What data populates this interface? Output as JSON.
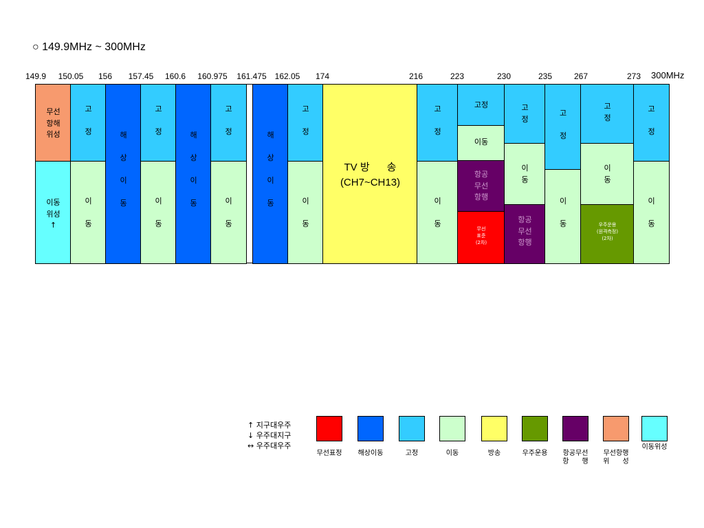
{
  "title": "○ 149.9MHz ~ 300MHz",
  "ticks": [
    "149.9",
    "150.05",
    "156",
    "157.45",
    "160.6",
    "160.975",
    "161.475",
    "162.05",
    "174",
    "216",
    "223",
    "230",
    "235",
    "267",
    "273",
    "300MHz"
  ],
  "colors": {
    "radio_navigation_satellite": "#f79a6e",
    "mobile_satellite": "#66ffff",
    "fixed": "#33ccff",
    "mobile": "#ccffcc",
    "maritime_mobile": "#0066ff",
    "broadcasting": "#ffff66",
    "aeronautical_radionavigation": "#660066",
    "standard_frequency": "#ff0000",
    "space_operation": "#669900"
  },
  "blocks": [
    {
      "label": "무선\n항해\n위성"
    },
    {
      "label": "이동\n위성\n↑"
    },
    {
      "label": "고\n\n정"
    },
    {
      "label": "이\n\n동"
    },
    {
      "label": "해\n\n상\n\n이\n\n동"
    },
    {
      "label": "고\n\n정"
    },
    {
      "label": "이\n\n동"
    },
    {
      "label": "해\n\n상\n\n이\n\n동"
    },
    {
      "label": "고\n\n정"
    },
    {
      "label": "이\n\n동"
    },
    {
      "label": "해\n\n상\n\n이\n\n동"
    },
    {
      "label": "고\n\n정"
    },
    {
      "label": "이\n\n동"
    },
    {
      "label": "TV 방      송\n(CH7~CH13)"
    },
    {
      "label": "고\n\n정"
    },
    {
      "label": "이\n\n동"
    },
    {
      "label": "고정"
    },
    {
      "label": "이동"
    },
    {
      "label": "항공\n무선\n항행"
    },
    {
      "label": "무선\n표준\n(2차)"
    },
    {
      "label": "고\n정"
    },
    {
      "label": "이\n동"
    },
    {
      "label": "항공\n무선\n항행"
    },
    {
      "label": "고\n\n정"
    },
    {
      "label": "이\n\n동"
    },
    {
      "label": "고\n정"
    },
    {
      "label": "이\n동"
    },
    {
      "label": "우주운용\n(원격측정)\n(2차)"
    },
    {
      "label": "고\n\n정"
    },
    {
      "label": "이\n\n동"
    }
  ],
  "legend": {
    "keys": [
      "↑   지구대우주",
      "↓   우주대지구",
      "↔  우주대우주"
    ],
    "items": [
      {
        "label": "무선표정",
        "color": "#ff0000"
      },
      {
        "label": "해상이동",
        "color": "#0066ff"
      },
      {
        "label": "고정",
        "color": "#33ccff"
      },
      {
        "label": "이동",
        "color": "#ccffcc"
      },
      {
        "label": "방송",
        "color": "#ffff66"
      },
      {
        "label": "우주운용",
        "color": "#669900"
      },
      {
        "label": "항공무선\n항      행",
        "color": "#660066"
      },
      {
        "label": "무선항행\n위      성",
        "color": "#f79a6e"
      },
      {
        "label": "이동위성",
        "color": "#66ffff"
      }
    ]
  }
}
